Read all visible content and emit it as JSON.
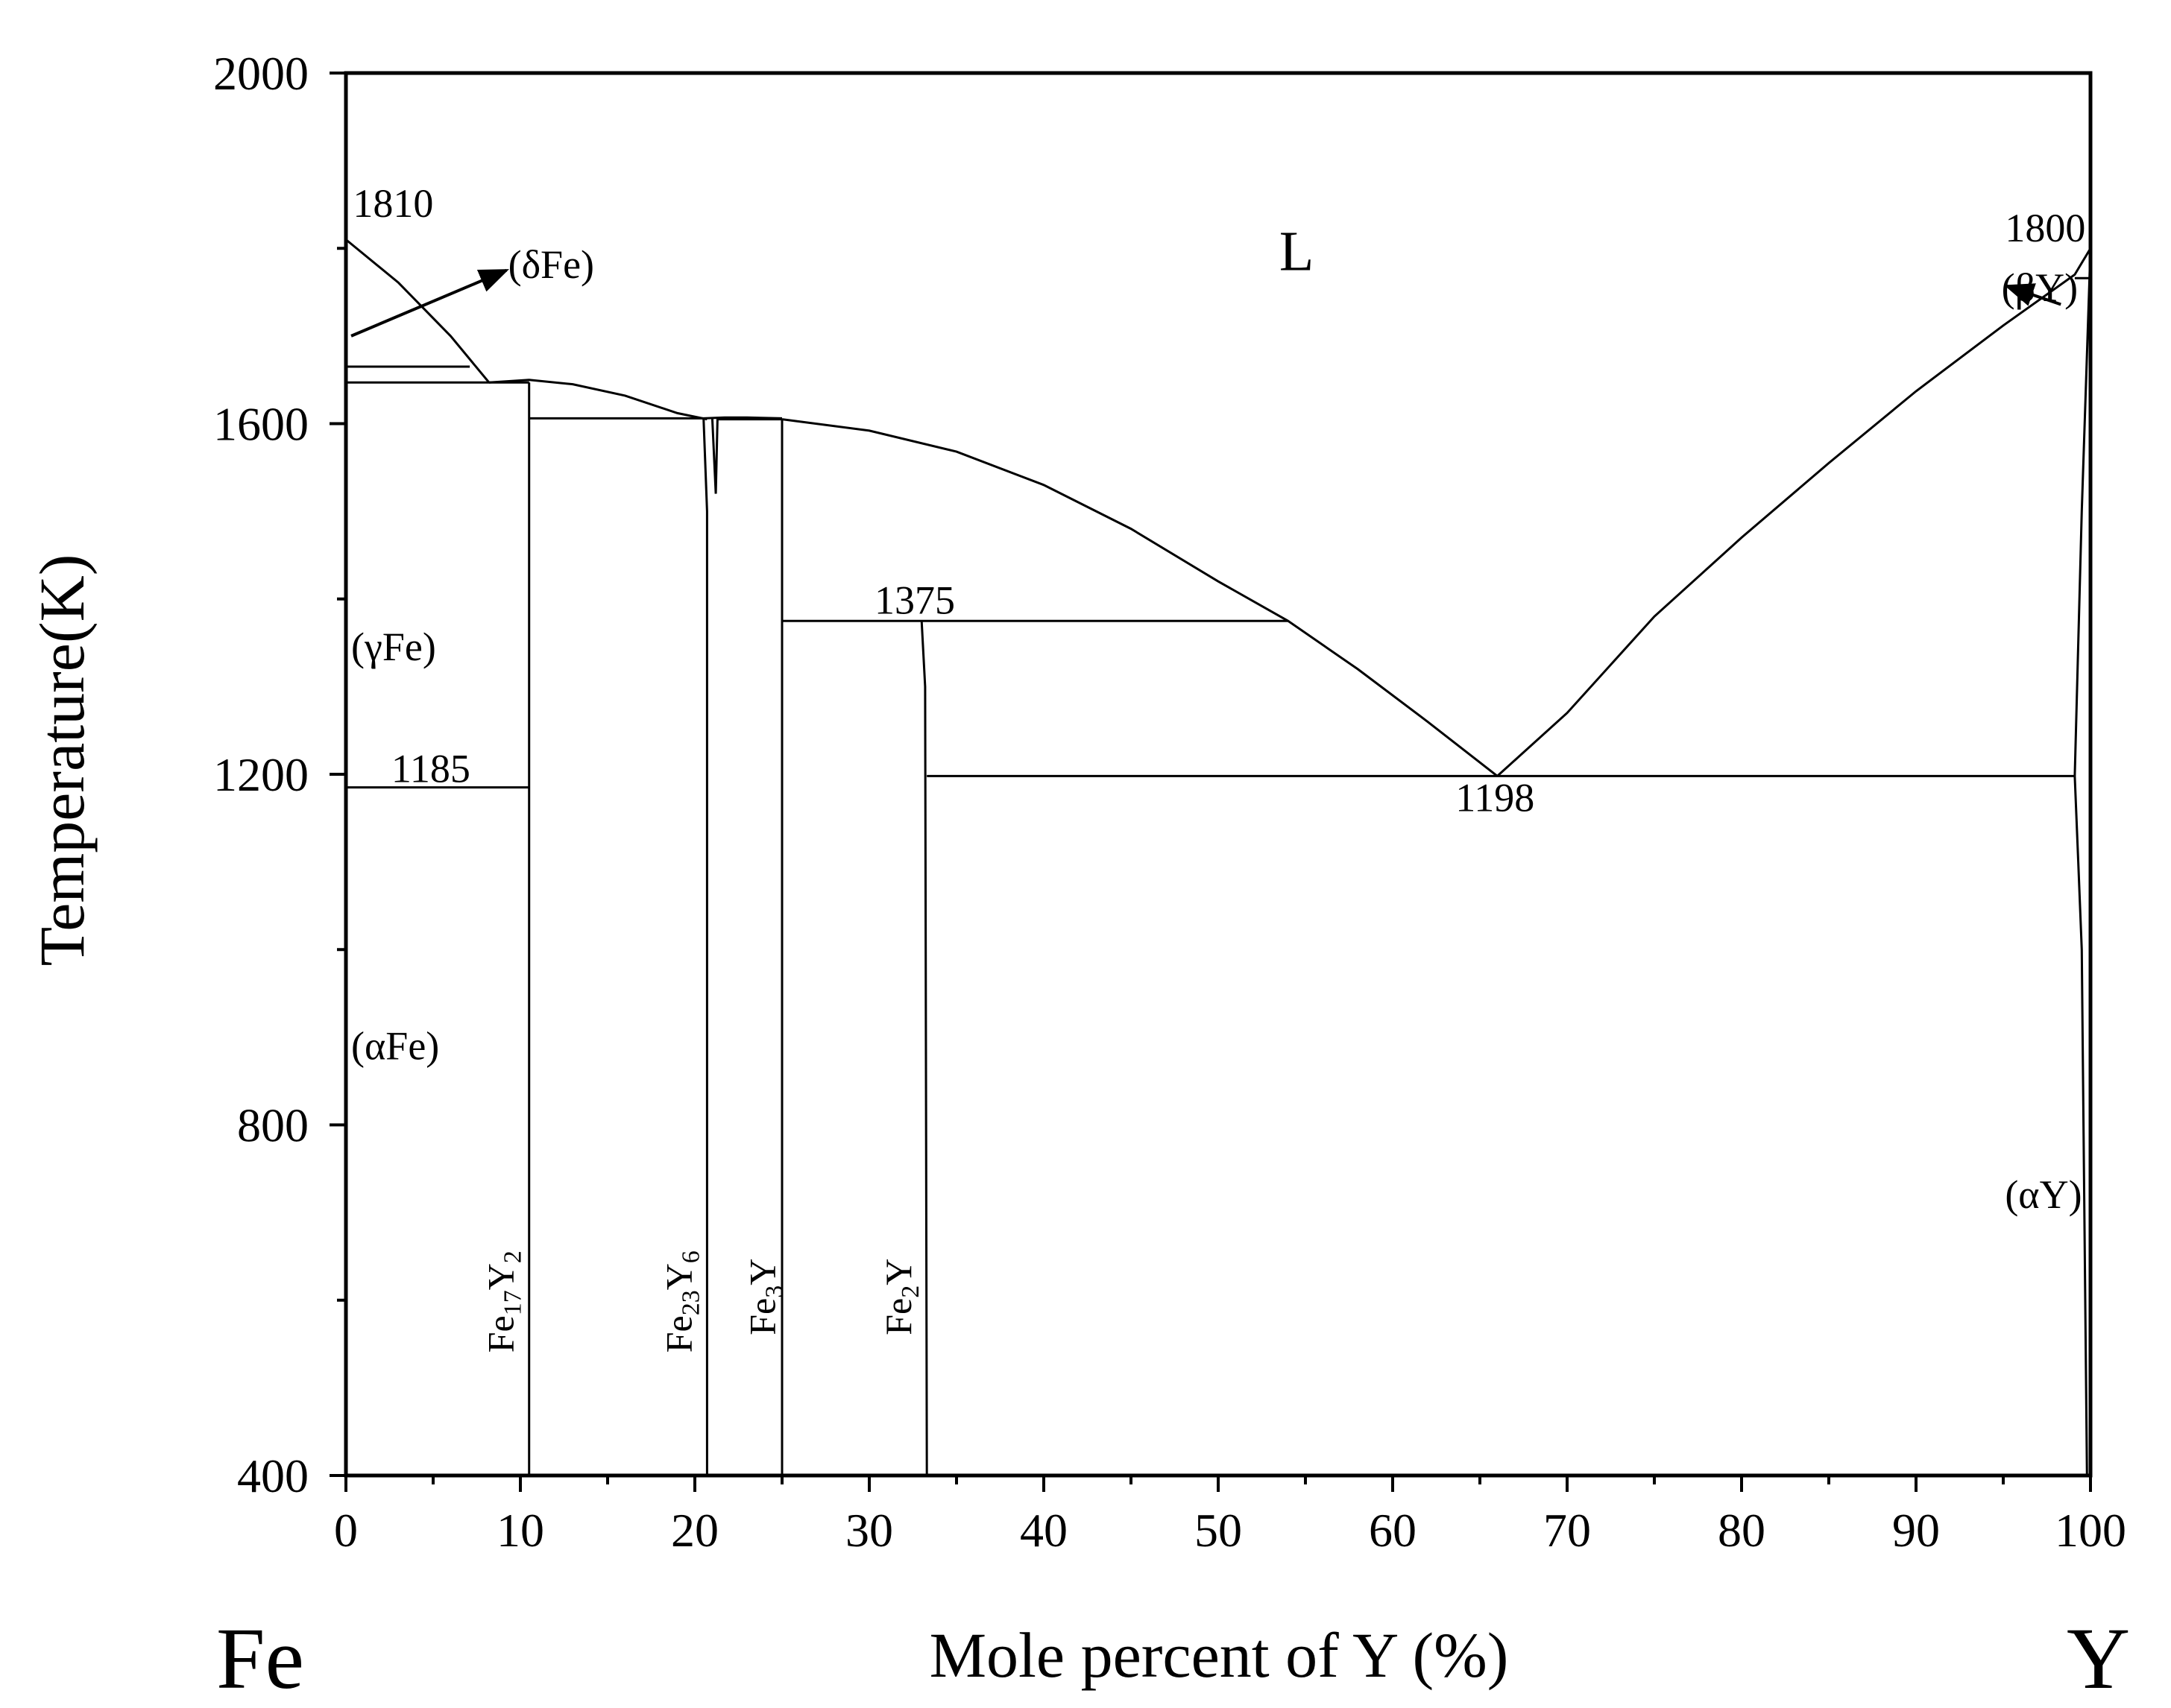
{
  "chart_data": {
    "type": "phase-diagram",
    "title": "",
    "xlabel": "Mole percent of Y (%)",
    "ylabel": "Temperature(K)",
    "xlim": [
      0,
      100
    ],
    "ylim": [
      400,
      2000
    ],
    "x_ticks": [
      0,
      10,
      20,
      30,
      40,
      50,
      60,
      70,
      80,
      90,
      100
    ],
    "y_ticks": [
      400,
      800,
      1200,
      1600,
      2000
    ],
    "elements": {
      "left": "Fe",
      "right": "Y"
    },
    "phase_labels": [
      {
        "id": "liquid",
        "text": "L",
        "x": 53.5,
        "y": 1775
      },
      {
        "id": "delta-fe",
        "text": "(δFe)",
        "x": 9.3,
        "y": 1766
      },
      {
        "id": "gamma-fe",
        "text": "(γFe)",
        "x": 0.3,
        "y": 1330
      },
      {
        "id": "alpha-fe",
        "text": "(αFe)",
        "x": 0.3,
        "y": 875
      },
      {
        "id": "beta-y",
        "text": "(βY)",
        "x": 94.9,
        "y": 1740
      },
      {
        "id": "alpha-y",
        "text": "(αY)",
        "x": 95.1,
        "y": 705
      }
    ],
    "compound_labels": [
      {
        "id": "fe17y2",
        "base1": "Fe",
        "sub1": "17",
        "base2": "Y",
        "sub2": "2",
        "x": 9.6,
        "y": 540
      },
      {
        "id": "fe23y6",
        "base1": "Fe",
        "sub1": "23",
        "base2": "Y",
        "sub2": "6",
        "x": 19.8,
        "y": 540
      },
      {
        "id": "fe3y",
        "base1": "Fe",
        "sub1": "3",
        "base2": "Y",
        "sub2": "",
        "x": 24.6,
        "y": 560
      },
      {
        "id": "fe2y",
        "base1": "Fe",
        "sub1": "2",
        "base2": "Y",
        "sub2": "",
        "x": 32.4,
        "y": 560
      }
    ],
    "temperature_labels": [
      {
        "id": "t1810",
        "text": "1810",
        "x": 0.4,
        "y": 1836
      },
      {
        "id": "t1800",
        "text": "1800",
        "x": 95.1,
        "y": 1808
      },
      {
        "id": "t1375",
        "text": "1375",
        "x": 30.3,
        "y": 1383
      },
      {
        "id": "t1185",
        "text": "1185",
        "x": 2.6,
        "y": 1191
      },
      {
        "id": "t1198",
        "text": "1198",
        "x": 63.6,
        "y": 1158
      }
    ],
    "lines": [
      {
        "id": "delta-liquidus",
        "points": [
          [
            0,
            1810
          ],
          [
            3,
            1761
          ],
          [
            6,
            1700
          ],
          [
            8.2,
            1647
          ]
        ]
      },
      {
        "id": "delta-gamma-iso",
        "points": [
          [
            0,
            1665
          ],
          [
            7.1,
            1665
          ]
        ]
      },
      {
        "id": "gamma-iso",
        "points": [
          [
            0,
            1647
          ],
          [
            10.5,
            1647
          ]
        ]
      },
      {
        "id": "liquidus-fe17y2-fe23y6",
        "points": [
          [
            8.2,
            1647
          ],
          [
            10.5,
            1650
          ],
          [
            13,
            1645
          ],
          [
            16,
            1632
          ],
          [
            19,
            1612
          ],
          [
            20.7,
            1605
          ]
        ]
      },
      {
        "id": "iso-fe17y2-fe23y6",
        "points": [
          [
            10.5,
            1606
          ],
          [
            20.5,
            1606
          ]
        ]
      },
      {
        "id": "fe17y2-line",
        "points": [
          [
            10.5,
            1647
          ],
          [
            10.5,
            400
          ]
        ]
      },
      {
        "id": "fe23y6-left",
        "points": [
          [
            20.5,
            1606
          ],
          [
            20.7,
            1500
          ],
          [
            20.7,
            400
          ]
        ]
      },
      {
        "id": "fe23y6-right",
        "points": [
          [
            21.0,
            1606
          ],
          [
            21.2,
            1520
          ],
          [
            21.3,
            1606
          ]
        ]
      },
      {
        "id": "liquidus-fe23y6-fe3y",
        "points": [
          [
            20.5,
            1606
          ],
          [
            21.7,
            1607
          ],
          [
            23,
            1607
          ],
          [
            25,
            1606
          ]
        ]
      },
      {
        "id": "iso-fe23y6-fe3y",
        "points": [
          [
            21.3,
            1605
          ],
          [
            25,
            1605
          ]
        ]
      },
      {
        "id": "fe3y-line",
        "points": [
          [
            25,
            1605
          ],
          [
            25,
            400
          ]
        ]
      },
      {
        "id": "liquidus-main",
        "points": [
          [
            25,
            1605
          ],
          [
            30,
            1592
          ],
          [
            35,
            1568
          ],
          [
            40,
            1530
          ],
          [
            45,
            1480
          ],
          [
            50,
            1420
          ],
          [
            54,
            1375
          ],
          [
            58,
            1320
          ],
          [
            62,
            1260
          ],
          [
            66,
            1198
          ]
        ]
      },
      {
        "id": "peritectic-1375",
        "points": [
          [
            25,
            1375
          ],
          [
            54,
            1375
          ]
        ]
      },
      {
        "id": "fe2y-line",
        "points": [
          [
            33,
            1375
          ],
          [
            33.2,
            1300
          ],
          [
            33.3,
            400
          ]
        ]
      },
      {
        "id": "eutectic-1198",
        "points": [
          [
            33.3,
            1198
          ],
          [
            99.1,
            1198
          ]
        ]
      },
      {
        "id": "liquidus-y",
        "points": [
          [
            66,
            1198
          ],
          [
            70,
            1270
          ],
          [
            75,
            1380
          ],
          [
            80,
            1470
          ],
          [
            85,
            1555
          ],
          [
            90,
            1637
          ],
          [
            95,
            1712
          ],
          [
            99.1,
            1770
          ],
          [
            100,
            1800
          ]
        ]
      },
      {
        "id": "beta-y-iso",
        "points": [
          [
            99.1,
            1766
          ],
          [
            100,
            1766
          ]
        ]
      },
      {
        "id": "y-solvus",
        "points": [
          [
            100,
            1800
          ],
          [
            99.5,
            1500
          ],
          [
            99.1,
            1198
          ],
          [
            99.3,
            1100
          ],
          [
            99.5,
            1000
          ],
          [
            99.8,
            400
          ]
        ]
      },
      {
        "id": "iso-1185",
        "points": [
          [
            0,
            1185
          ],
          [
            10.5,
            1185
          ]
        ]
      }
    ],
    "arrows": [
      {
        "id": "delta-fe-arrow",
        "from": [
          0.3,
          1700
        ],
        "to": [
          9.2,
          1775
        ]
      },
      {
        "id": "beta-y-arrow",
        "from": [
          98.3,
          1736
        ],
        "to": [
          95.2,
          1757
        ]
      }
    ]
  }
}
